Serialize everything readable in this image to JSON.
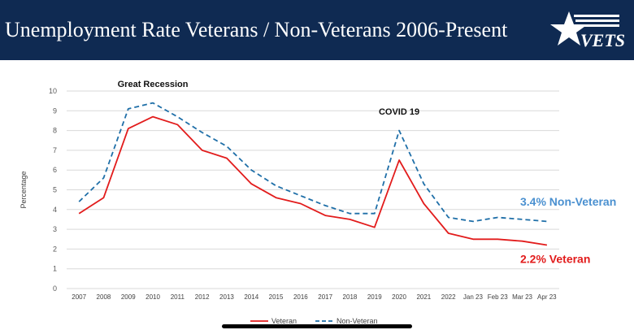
{
  "header": {
    "title": "Unemployment Rate Veterans / Non-Veterans 2006-Present",
    "logo_text": "VETS",
    "logo_icon": "star-icon",
    "background_color": "#0f2a52"
  },
  "chart_data": {
    "type": "line",
    "categories": [
      "2007",
      "2008",
      "2009",
      "2010",
      "2011",
      "2012",
      "2013",
      "2014",
      "2015",
      "2016",
      "2017",
      "2018",
      "2019",
      "2020",
      "2021",
      "2022",
      "Jan 23",
      "Feb 23",
      "Mar 23",
      "Apr 23"
    ],
    "ylabel": "Percentage",
    "xlabel": "",
    "ylim": [
      0,
      10
    ],
    "yticks": [
      "0",
      "1",
      "2",
      "3",
      "4",
      "5",
      "6",
      "7",
      "8",
      "9",
      "10"
    ],
    "grid": true,
    "series": [
      {
        "name": "Veteran",
        "color": "#e21c1c",
        "style": "solid",
        "values": [
          3.8,
          4.6,
          8.1,
          8.7,
          8.3,
          7.0,
          6.6,
          5.3,
          4.6,
          4.3,
          3.7,
          3.5,
          3.1,
          6.5,
          4.3,
          2.8,
          2.5,
          2.5,
          2.4,
          2.2
        ]
      },
      {
        "name": "Non-Veteran",
        "color": "#1f6fa8",
        "style": "dashed",
        "values": [
          4.4,
          5.6,
          9.1,
          9.4,
          8.7,
          7.9,
          7.2,
          6.0,
          5.2,
          4.7,
          4.2,
          3.8,
          3.8,
          8.0,
          5.3,
          3.6,
          3.4,
          3.6,
          3.5,
          3.4
        ]
      }
    ],
    "annotations": [
      {
        "text": "Great Recession",
        "category": "2010",
        "value": 10.2
      },
      {
        "text": "COVID 19",
        "category": "2020",
        "value": 8.8
      }
    ],
    "end_labels": [
      {
        "text": "3.4% Non-Veteran",
        "color": "#4a90d0",
        "value": 4.2
      },
      {
        "text": "2.2% Veteran",
        "color": "#e21c1c",
        "value": 1.3
      }
    ],
    "legend_position": "bottom"
  }
}
